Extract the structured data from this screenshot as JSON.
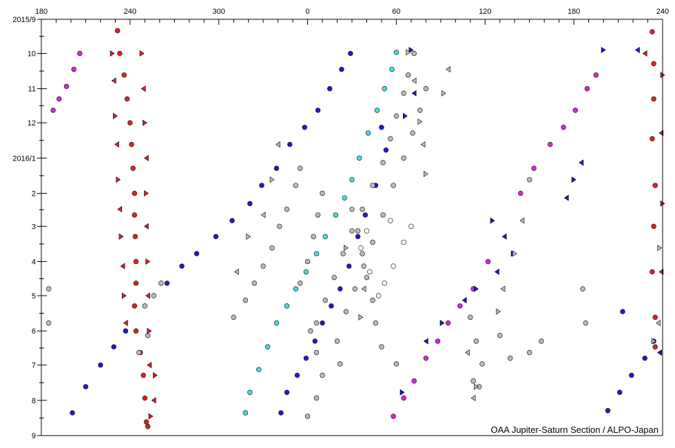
{
  "chart_data": {
    "type": "scatter",
    "title": "",
    "xlabel": "",
    "ylabel": "",
    "x_tick_labels": [
      "180",
      "240",
      "300",
      "0",
      "60",
      "120",
      "180",
      "240"
    ],
    "x_ticks_lon": [
      180,
      240,
      300,
      360,
      420,
      480,
      540,
      600
    ],
    "xlim": [
      180,
      600
    ],
    "y_tick_labels": [
      "2015/9",
      "10",
      "11",
      "12",
      "2016/1",
      "2",
      "3",
      "4",
      "5",
      "6",
      "7",
      "8",
      "9"
    ],
    "ylim": [
      "2015-09-01",
      "2016-09-01"
    ],
    "grid": false,
    "legend": "none",
    "credit": "OAA Jupiter-Saturn Section / ALPO-Japan",
    "series": [
      {
        "color": "#e02020",
        "marker": "circle",
        "points": [
          [
            231.5,
            "2015-09-11"
          ],
          [
            233,
            "2015-10-01"
          ],
          [
            236,
            "2015-10-20"
          ],
          [
            238,
            "2015-11-10"
          ],
          [
            240,
            "2015-12-01"
          ],
          [
            241,
            "2015-12-20"
          ],
          [
            242,
            "2016-01-10"
          ],
          [
            243,
            "2016-02-01"
          ],
          [
            243,
            "2016-02-20"
          ],
          [
            243.5,
            "2016-03-10"
          ],
          [
            244,
            "2016-04-01"
          ],
          [
            244,
            "2016-04-20"
          ],
          [
            243,
            "2016-05-10"
          ],
          [
            244,
            "2016-06-01"
          ],
          [
            247,
            "2016-06-20"
          ],
          [
            249,
            "2016-07-10"
          ],
          [
            250,
            "2016-07-30"
          ],
          [
            251,
            "2016-08-20"
          ],
          [
            252,
            "2016-08-24"
          ],
          [
            593,
            "2015-09-12"
          ],
          [
            594,
            "2015-10-10"
          ],
          [
            594,
            "2015-11-10"
          ],
          [
            593,
            "2015-12-15"
          ],
          [
            595,
            "2016-01-25"
          ],
          [
            594,
            "2016-03-01"
          ],
          [
            593,
            "2016-04-10"
          ],
          [
            595,
            "2016-05-20"
          ],
          [
            595,
            "2016-06-15"
          ]
        ]
      },
      {
        "color": "#1a1ad0",
        "marker": "circle",
        "points": [
          [
            389,
            "2015-10-01"
          ],
          [
            383,
            "2015-10-15"
          ],
          [
            375,
            "2015-11-01"
          ],
          [
            367,
            "2015-11-20"
          ],
          [
            358,
            "2015-12-05"
          ],
          [
            348,
            "2015-12-20"
          ],
          [
            339,
            "2016-01-10"
          ],
          [
            329,
            "2016-01-25"
          ],
          [
            321,
            "2016-02-10"
          ],
          [
            309,
            "2016-02-25"
          ],
          [
            298,
            "2016-03-10"
          ],
          [
            285,
            "2016-03-25"
          ],
          [
            275,
            "2016-04-05"
          ],
          [
            265,
            "2016-04-20"
          ],
          [
            237,
            "2016-06-01"
          ],
          [
            229,
            "2016-06-15"
          ],
          [
            220,
            "2016-07-01"
          ],
          [
            210,
            "2016-07-20"
          ],
          [
            201,
            "2016-08-12"
          ],
          [
            594,
            "2016-06-10"
          ],
          [
            588,
            "2016-06-25"
          ],
          [
            579,
            "2016-07-10"
          ],
          [
            571,
            "2016-07-25"
          ],
          [
            563,
            "2016-08-10"
          ],
          [
            410,
            "2015-12-05"
          ],
          [
            413,
            "2015-12-25"
          ],
          [
            406,
            "2016-01-25"
          ],
          [
            399,
            "2016-02-20"
          ],
          [
            394,
            "2016-03-10"
          ],
          [
            388,
            "2016-04-05"
          ],
          [
            382,
            "2016-04-25"
          ],
          [
            376,
            "2016-05-10"
          ],
          [
            370,
            "2016-05-25"
          ],
          [
            365,
            "2016-06-10"
          ],
          [
            359,
            "2016-06-25"
          ],
          [
            353,
            "2016-07-10"
          ],
          [
            346,
            "2016-07-25"
          ],
          [
            342,
            "2016-08-12"
          ],
          [
            573,
            "2016-05-15"
          ]
        ]
      },
      {
        "color": "#40e0e0",
        "marker": "circle",
        "points": [
          [
            420,
            "2015-09-30"
          ],
          [
            417,
            "2015-10-15"
          ],
          [
            412,
            "2015-11-01"
          ],
          [
            407,
            "2015-11-20"
          ],
          [
            401,
            "2015-12-10"
          ],
          [
            395,
            "2016-01-01"
          ],
          [
            390,
            "2016-01-20"
          ],
          [
            385,
            "2016-02-05"
          ],
          [
            379,
            "2016-02-20"
          ],
          [
            372,
            "2016-03-10"
          ],
          [
            366,
            "2016-03-25"
          ],
          [
            359,
            "2016-04-10"
          ],
          [
            352,
            "2016-04-25"
          ],
          [
            346,
            "2016-05-10"
          ],
          [
            339,
            "2016-05-25"
          ],
          [
            333,
            "2016-06-15"
          ],
          [
            327,
            "2016-07-05"
          ],
          [
            321,
            "2016-07-25"
          ],
          [
            318,
            "2016-08-12"
          ]
        ]
      },
      {
        "color": "#e020e0",
        "marker": "circle",
        "points": [
          [
            188,
            "2015-11-20"
          ],
          [
            192,
            "2015-11-10"
          ],
          [
            197,
            "2015-10-30"
          ],
          [
            202,
            "2015-10-15"
          ],
          [
            206,
            "2015-10-01"
          ],
          [
            555,
            "2015-10-20"
          ],
          [
            549,
            "2015-11-01"
          ],
          [
            541,
            "2015-11-20"
          ],
          [
            533,
            "2015-12-05"
          ],
          [
            524,
            "2015-12-20"
          ],
          [
            513,
            "2016-01-10"
          ],
          [
            504,
            "2016-02-01"
          ],
          [
            482,
            "2016-04-01"
          ],
          [
            472,
            "2016-04-25"
          ],
          [
            463,
            "2016-05-10"
          ],
          [
            455,
            "2016-05-25"
          ],
          [
            448,
            "2016-06-10"
          ],
          [
            440,
            "2016-06-25"
          ],
          [
            432,
            "2016-07-15"
          ],
          [
            425,
            "2016-07-30"
          ],
          [
            418,
            "2016-08-15"
          ]
        ]
      },
      {
        "color": "#bbbbbb",
        "marker": "circle",
        "points": [
          [
            432,
            "2015-10-01"
          ],
          [
            428,
            "2015-10-20"
          ],
          [
            425,
            "2015-11-05"
          ],
          [
            420,
            "2015-11-25"
          ],
          [
            416,
            "2015-12-15"
          ],
          [
            411,
            "2016-01-05"
          ],
          [
            404,
            "2016-01-25"
          ],
          [
            397,
            "2016-02-15"
          ],
          [
            390,
            "2016-03-05"
          ],
          [
            384,
            "2016-03-25"
          ],
          [
            378,
            "2016-04-15"
          ],
          [
            372,
            "2016-05-05"
          ],
          [
            366,
            "2016-05-25"
          ],
          [
            440,
            "2015-11-01"
          ],
          [
            436,
            "2015-11-20"
          ],
          [
            431,
            "2015-12-10"
          ],
          [
            425,
            "2016-01-01"
          ],
          [
            418,
            "2016-01-25"
          ],
          [
            411,
            "2016-02-20"
          ],
          [
            404,
            "2016-03-15"
          ],
          [
            398,
            "2016-04-05"
          ],
          [
            392,
            "2016-04-25"
          ],
          [
            386,
            "2016-05-15"
          ],
          [
            355,
            "2016-01-10"
          ],
          [
            352,
            "2016-01-25"
          ],
          [
            346,
            "2016-02-15"
          ],
          [
            341,
            "2016-03-01"
          ],
          [
            336,
            "2016-03-20"
          ],
          [
            330,
            "2016-04-05"
          ],
          [
            324,
            "2016-04-20"
          ],
          [
            318,
            "2016-05-05"
          ],
          [
            310,
            "2016-05-20"
          ],
          [
            370,
            "2016-02-01"
          ],
          [
            367,
            "2016-02-20"
          ],
          [
            364,
            "2016-03-10"
          ],
          [
            360,
            "2016-04-01"
          ],
          [
            355,
            "2016-04-20"
          ],
          [
            362,
            "2016-06-01"
          ],
          [
            366,
            "2016-06-20"
          ],
          [
            370,
            "2016-07-10"
          ],
          [
            366,
            "2016-07-30"
          ],
          [
            360,
            "2016-08-15"
          ],
          [
            380,
            "2016-06-10"
          ],
          [
            382,
            "2016-06-30"
          ],
          [
            390,
            "2016-02-15"
          ],
          [
            394,
            "2016-03-05"
          ],
          [
            397,
            "2016-03-25"
          ],
          [
            400,
            "2016-04-15"
          ],
          [
            404,
            "2016-05-05"
          ],
          [
            406,
            "2016-05-25"
          ],
          [
            410,
            "2016-06-15"
          ],
          [
            420,
            "2016-06-30"
          ],
          [
            250,
            "2016-05-10"
          ],
          [
            256,
            "2016-05-01"
          ],
          [
            261,
            "2016-04-20"
          ],
          [
            252,
            "2016-06-05"
          ],
          [
            246,
            "2016-06-20"
          ],
          [
            470,
            "2016-05-20"
          ],
          [
            474,
            "2016-06-10"
          ],
          [
            478,
            "2016-06-30"
          ],
          [
            476,
            "2016-07-20"
          ],
          [
            472,
            "2016-07-15"
          ],
          [
            490,
            "2016-06-05"
          ],
          [
            497,
            "2016-06-25"
          ],
          [
            510,
            "2016-06-20"
          ],
          [
            518,
            "2016-06-10"
          ],
          [
            185,
            "2016-04-25"
          ],
          [
            185,
            "2016-05-25"
          ],
          [
            546,
            "2016-04-25"
          ],
          [
            548,
            "2016-05-25"
          ],
          [
            510,
            "2016-01-20"
          ]
        ]
      },
      {
        "color": "#ffffff",
        "marker": "circle",
        "points": [
          [
            396,
            "2016-03-20"
          ],
          [
            402,
            "2016-04-10"
          ],
          [
            408,
            "2016-05-01"
          ],
          [
            412,
            "2016-04-20"
          ],
          [
            418,
            "2016-04-05"
          ],
          [
            425,
            "2016-03-15"
          ],
          [
            430,
            "2016-03-01"
          ],
          [
            416,
            "2016-02-25"
          ],
          [
            400,
            "2016-03-05"
          ]
        ]
      },
      {
        "color": "#1a1ad0",
        "marker": "triangle",
        "points": [
          [
            430,
            "2015-09-28"
          ],
          [
            432,
            "2015-11-05"
          ],
          [
            426,
            "2015-11-25"
          ],
          [
            545,
            "2016-01-05"
          ],
          [
            540,
            "2016-01-20"
          ],
          [
            535,
            "2016-02-05"
          ],
          [
            485,
            "2016-02-25"
          ],
          [
            493,
            "2016-03-10"
          ],
          [
            499,
            "2016-03-25"
          ],
          [
            488,
            "2016-04-10"
          ],
          [
            474,
            "2016-04-25"
          ],
          [
            466,
            "2016-05-05"
          ],
          [
            451,
            "2016-05-25"
          ],
          [
            440,
            "2016-06-10"
          ],
          [
            424,
            "2016-07-25"
          ],
          [
            583,
            "2015-09-28"
          ],
          [
            560,
            "2015-09-28"
          ],
          [
            598,
            "2016-06-20"
          ]
        ]
      },
      {
        "color": "#e02020",
        "marker": "triangle",
        "points": [
          [
            228,
            "2015-10-01"
          ],
          [
            229,
            "2015-10-25"
          ],
          [
            230,
            "2015-11-25"
          ],
          [
            231,
            "2015-12-20"
          ],
          [
            232,
            "2016-01-20"
          ],
          [
            233,
            "2016-02-15"
          ],
          [
            234,
            "2016-03-10"
          ],
          [
            235,
            "2016-04-05"
          ],
          [
            236,
            "2016-05-01"
          ],
          [
            237,
            "2016-05-25"
          ],
          [
            248,
            "2015-10-01"
          ],
          [
            249,
            "2015-11-01"
          ],
          [
            250,
            "2015-12-01"
          ],
          [
            251,
            "2016-01-01"
          ],
          [
            251,
            "2016-02-01"
          ],
          [
            251,
            "2016-03-01"
          ],
          [
            252,
            "2016-04-01"
          ],
          [
            252,
            "2016-05-01"
          ],
          [
            253,
            "2016-06-01"
          ],
          [
            253,
            "2016-07-01"
          ],
          [
            257,
            "2016-07-10"
          ],
          [
            256,
            "2016-08-01"
          ],
          [
            254,
            "2016-08-15"
          ],
          [
            588,
            "2015-10-01"
          ],
          [
            600,
            "2015-10-20"
          ],
          [
            599,
            "2015-12-10"
          ],
          [
            600,
            "2016-02-10"
          ],
          [
            599,
            "2016-04-10"
          ]
        ]
      },
      {
        "color": "#bbbbbb",
        "marker": "triangle",
        "points": [
          [
            428,
            "2015-09-30"
          ],
          [
            432,
            "2015-10-25"
          ],
          [
            436,
            "2015-11-30"
          ],
          [
            438,
            "2015-12-20"
          ],
          [
            440,
            "2016-01-15"
          ],
          [
            340,
            "2015-12-20"
          ],
          [
            336,
            "2016-01-20"
          ],
          [
            330,
            "2016-02-20"
          ],
          [
            320,
            "2016-03-10"
          ],
          [
            312,
            "2016-04-10"
          ],
          [
            386,
            "2016-03-20"
          ],
          [
            398,
            "2016-04-25"
          ],
          [
            396,
            "2016-05-20"
          ],
          [
            455,
            "2015-10-15"
          ],
          [
            452,
            "2015-11-05"
          ],
          [
            505,
            "2016-02-25"
          ],
          [
            500,
            "2016-03-25"
          ],
          [
            492,
            "2016-04-25"
          ],
          [
            489,
            "2016-05-15"
          ],
          [
            468,
            "2016-06-20"
          ],
          [
            474,
            "2016-07-20"
          ],
          [
            472,
            "2016-07-30"
          ],
          [
            598,
            "2016-03-20"
          ],
          [
            597,
            "2016-05-25"
          ],
          [
            594,
            "2016-06-10"
          ]
        ]
      }
    ]
  }
}
